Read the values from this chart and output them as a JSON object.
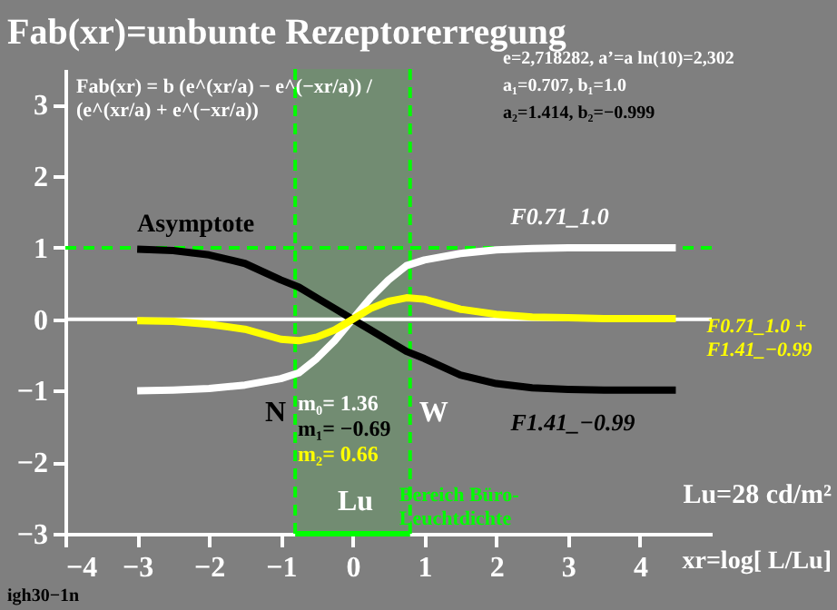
{
  "chart_data": {
    "type": "line",
    "title": "Fab(xr)=unbunte Rezeptorerregung",
    "xlabel": "xr=log[ L/Lu]",
    "x": [
      -3,
      -2.5,
      -2,
      -1.5,
      -1,
      -0.75,
      -0.5,
      -0.25,
      0,
      0.25,
      0.5,
      0.75,
      1,
      1.5,
      2,
      2.5,
      3,
      3.5,
      4,
      4.5
    ],
    "series": [
      {
        "name": "F0.71_1.0",
        "color": "#ffffff",
        "values": [
          -1.0,
          -0.99,
          -0.97,
          -0.92,
          -0.83,
          -0.75,
          -0.55,
          -0.3,
          0,
          0.3,
          0.55,
          0.75,
          0.83,
          0.92,
          0.97,
          0.99,
          1.0,
          1.0,
          1.0,
          1.0
        ]
      },
      {
        "name": "F1.41_−0.99",
        "color": "#000000",
        "values": [
          0.98,
          0.96,
          0.9,
          0.78,
          0.55,
          0.45,
          0.3,
          0.15,
          0,
          -0.15,
          -0.3,
          -0.45,
          -0.55,
          -0.78,
          -0.9,
          -0.96,
          -0.98,
          -0.99,
          -0.99,
          -0.99
        ]
      },
      {
        "name": "F0.71_1.0 +\nF1.41_−0.99",
        "color": "#ffff00",
        "values": [
          -0.02,
          -0.03,
          -0.07,
          -0.14,
          -0.28,
          -0.3,
          -0.25,
          -0.15,
          0,
          0.15,
          0.25,
          0.3,
          0.28,
          0.14,
          0.07,
          0.03,
          0.02,
          0.01,
          0.01,
          0.01
        ]
      }
    ],
    "xlim": [
      -4,
      5
    ],
    "ylim": [
      -3,
      3.5
    ],
    "xticks": [
      -4,
      -3,
      -2,
      -1,
      0,
      1,
      2,
      3,
      4
    ],
    "yticks": [
      -3,
      -2,
      -1,
      0,
      1,
      2,
      3
    ],
    "ref_lines": [
      {
        "axis": "y",
        "value": 0,
        "label": null,
        "color": "#ffffff",
        "line_style": "solid"
      },
      {
        "axis": "y",
        "value": 1,
        "label": "Asymptote",
        "color": "#00ff00",
        "line_style": "dashed"
      },
      {
        "axis": "x",
        "value": -0.8,
        "label": "N",
        "color": "#00ff00",
        "line_style": "dashed"
      },
      {
        "axis": "x",
        "value": 0.8,
        "label": "W",
        "color": "#00ff00",
        "line_style": "dashed"
      }
    ],
    "bands": [
      {
        "axis": "x",
        "from": -0.8,
        "to": 0.8,
        "label": "Bereich Büro-\nLeuchtdichte",
        "color": "#00ff00"
      }
    ],
    "annotations": [
      "Fab(xr) = b (e^(xr/a) − e^(−xr/a)) /\n(e^(xr/a) + e^(−xr/a))",
      "e=2,718282, a’=a ln(10)=2,302",
      "a₁=0.707, b₁=1.0",
      "a₂=1.414, b₂=−0.999",
      "m₀=  1.36",
      "m₁=  −0.69",
      "m₂=  0.66",
      "Lu",
      "Lu=28 cd/m²",
      "igh30−1n"
    ],
    "grid": false,
    "legend": false,
    "line_style": "solid",
    "marker": "none"
  }
}
